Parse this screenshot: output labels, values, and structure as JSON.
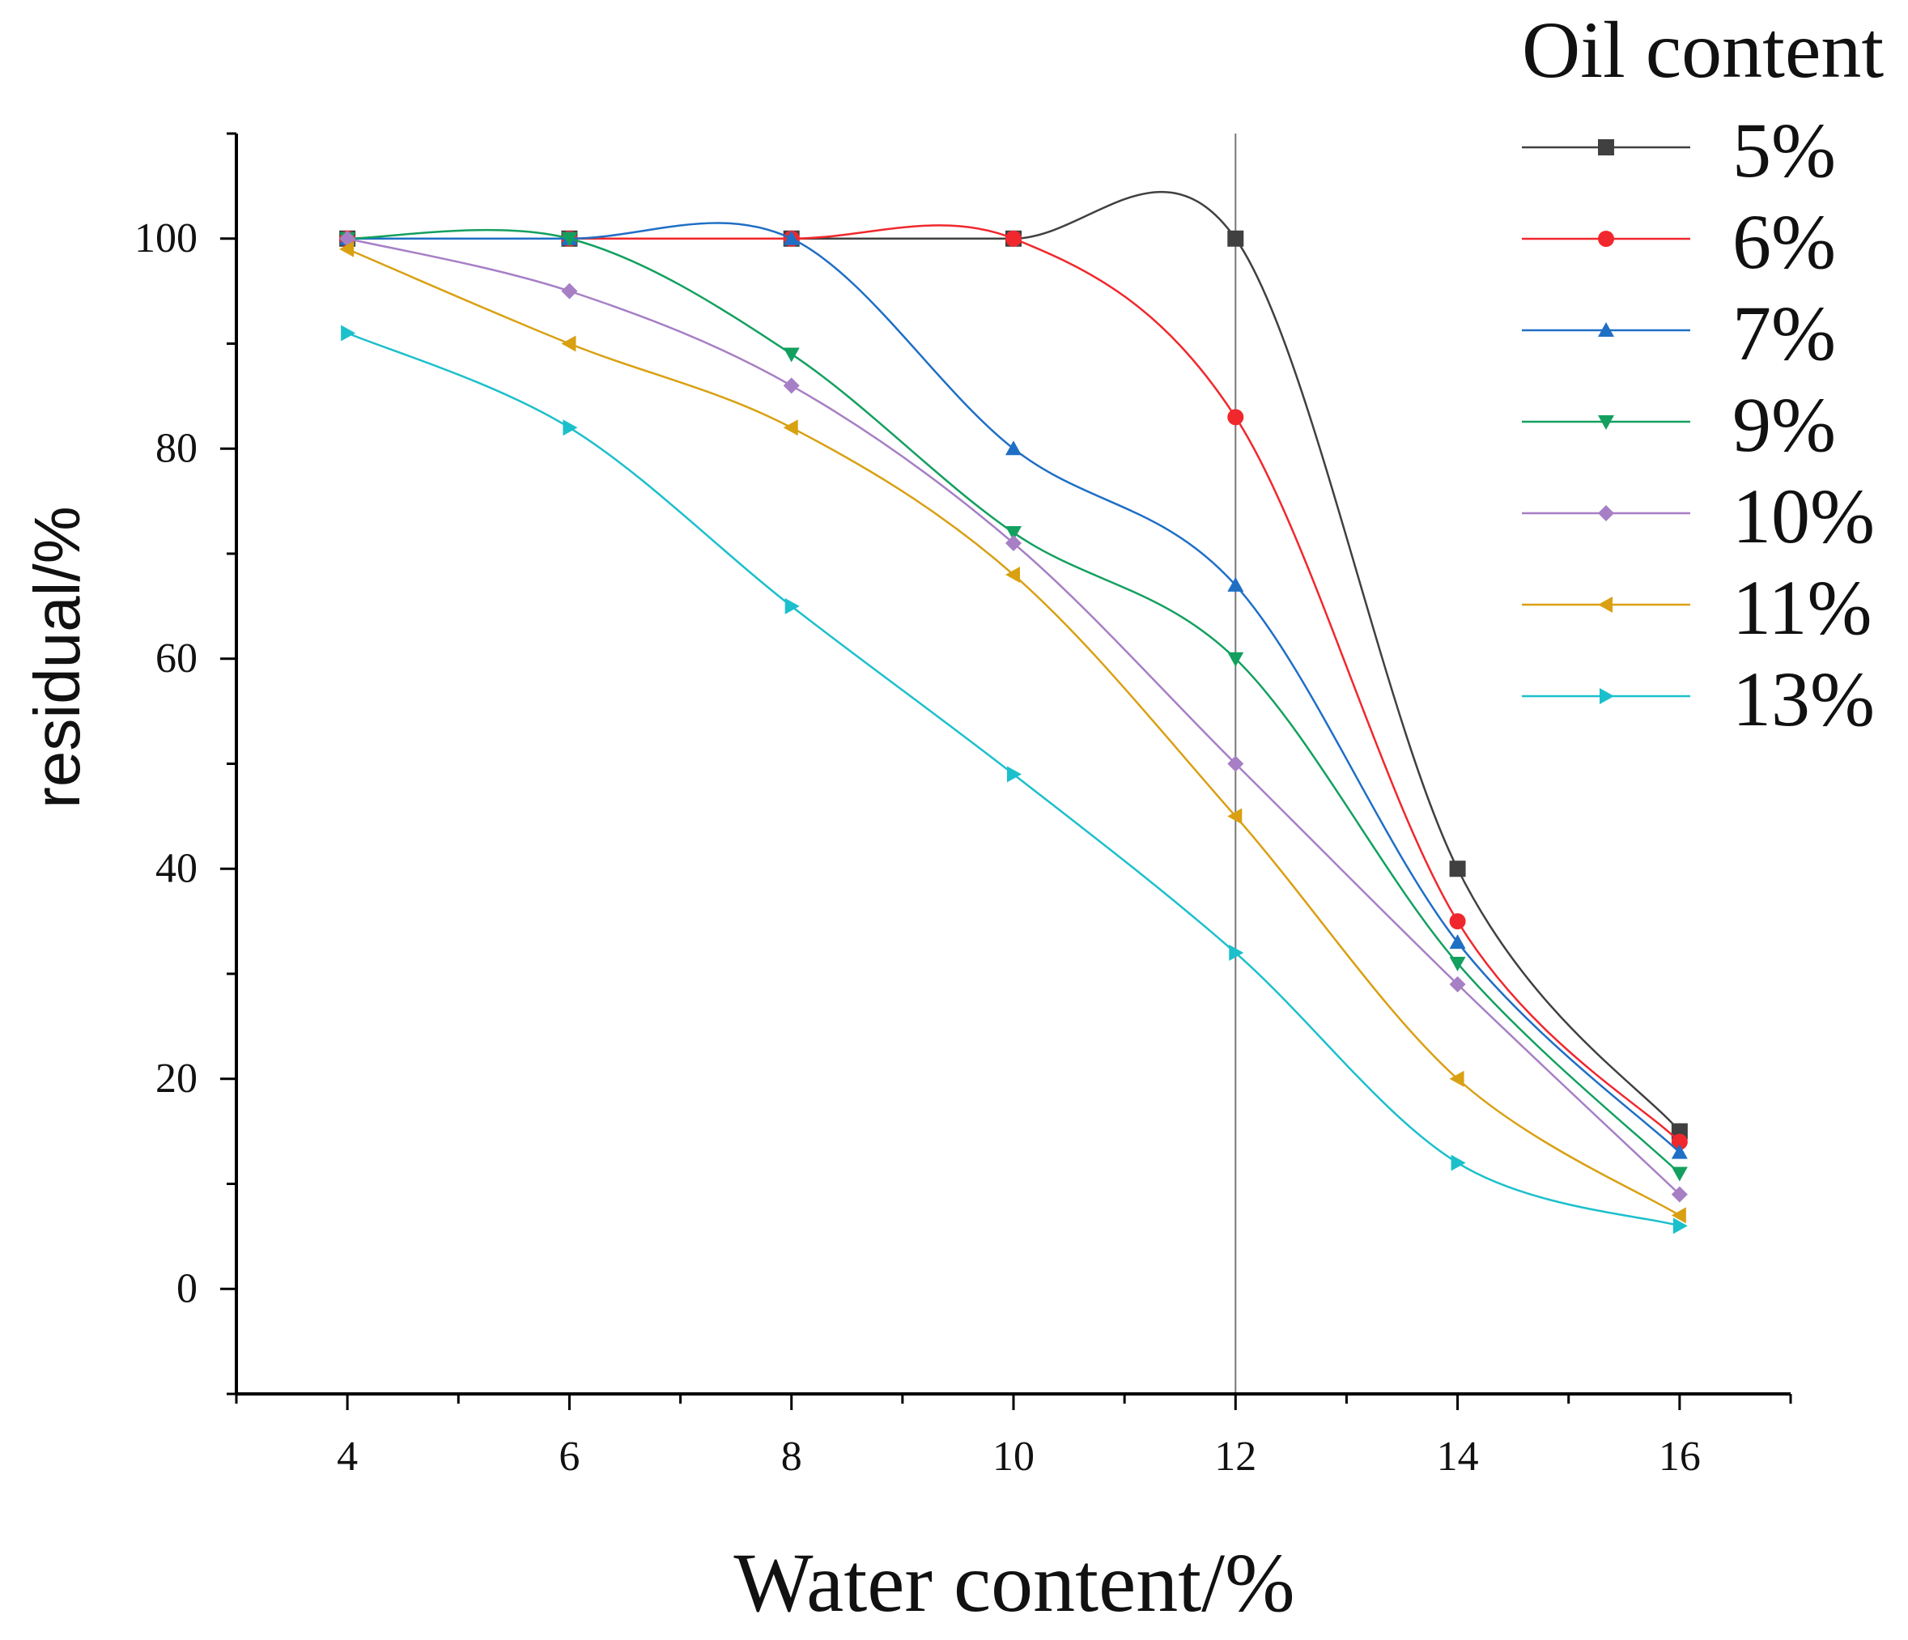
{
  "chart_data": {
    "type": "line",
    "smooth": true,
    "xlabel": "Water content/%",
    "ylabel": "residual/%",
    "xlim": [
      3,
      17
    ],
    "ylim": [
      -10,
      110
    ],
    "xticks": [
      4,
      6,
      8,
      10,
      12,
      14,
      16
    ],
    "x_tick_labels": [
      "4",
      "6",
      "8",
      "10",
      "12",
      "14",
      "16"
    ],
    "yticks": [
      0,
      20,
      40,
      60,
      80,
      100
    ],
    "y_tick_labels": [
      "0",
      "20",
      "40",
      "60",
      "80",
      "100"
    ],
    "reference_line_x": 12,
    "legend": {
      "title": "Oil content",
      "placement": "right"
    },
    "x": [
      4,
      6,
      8,
      10,
      12,
      14,
      16
    ],
    "series": [
      {
        "name": "5%",
        "color": "#404040",
        "marker": "square",
        "values": [
          100,
          100,
          100,
          100,
          100,
          40,
          15
        ]
      },
      {
        "name": "6%",
        "color": "#f0282d",
        "marker": "circle",
        "values": [
          100,
          100,
          100,
          100,
          83,
          35,
          14
        ]
      },
      {
        "name": "7%",
        "color": "#1f6fc5",
        "marker": "triangle-up",
        "values": [
          100,
          100,
          100,
          80,
          67,
          33,
          13
        ]
      },
      {
        "name": "9%",
        "color": "#13a05f",
        "marker": "triangle-down",
        "values": [
          100,
          100,
          89,
          72,
          60,
          31,
          11
        ]
      },
      {
        "name": "10%",
        "color": "#a77fc5",
        "marker": "diamond",
        "values": [
          100,
          95,
          86,
          71,
          50,
          29,
          9
        ]
      },
      {
        "name": "11%",
        "color": "#d9a012",
        "marker": "triangle-left",
        "values": [
          99,
          90,
          82,
          68,
          45,
          20,
          7
        ]
      },
      {
        "name": "13%",
        "color": "#1cc0cc",
        "marker": "triangle-right",
        "values": [
          91,
          82,
          65,
          49,
          32,
          12,
          6
        ]
      }
    ]
  }
}
